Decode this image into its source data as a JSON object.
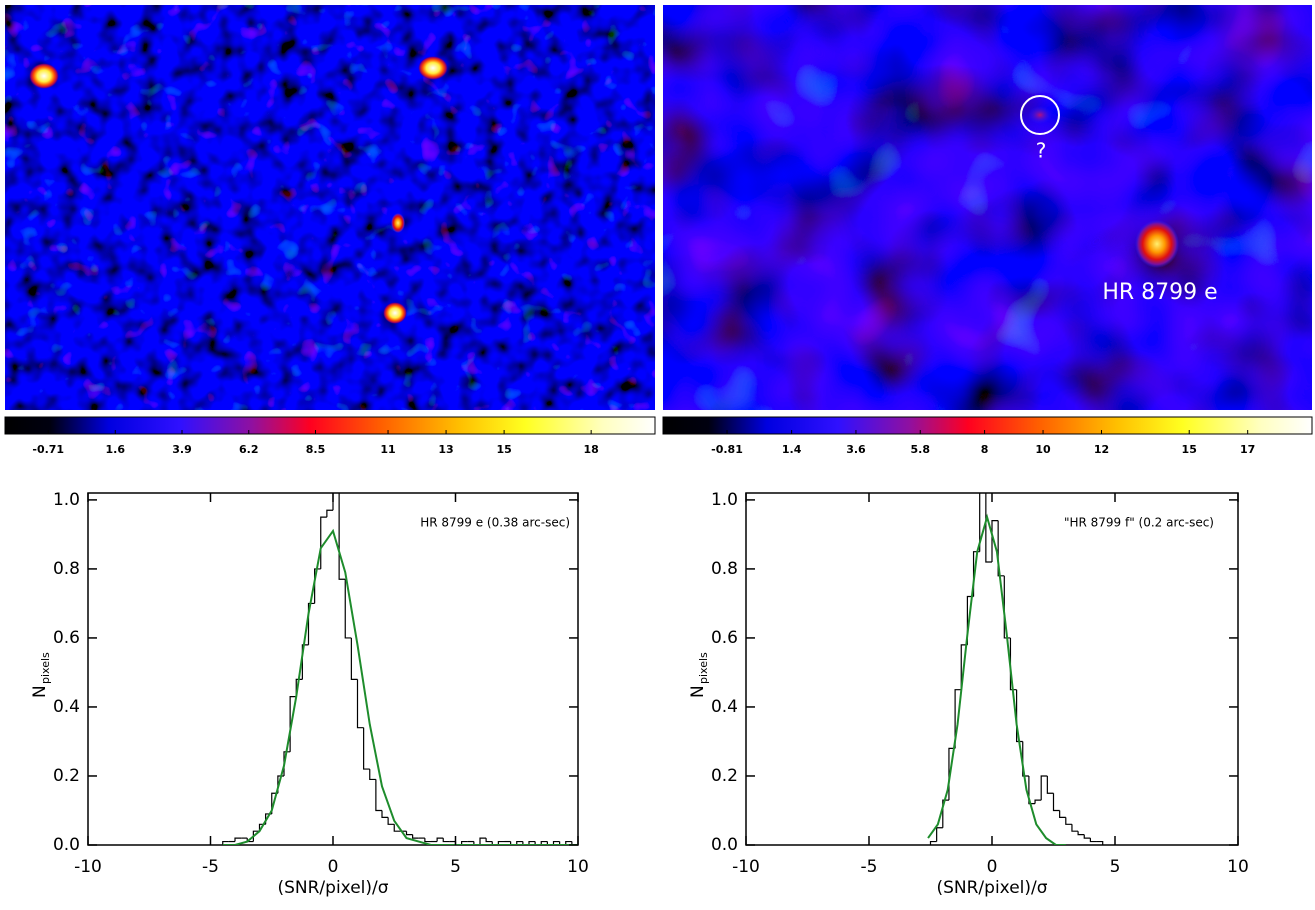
{
  "chart_data": [
    {
      "type": "image",
      "colorbar": {
        "lim": [
          -2.2,
          20.2
        ],
        "ticks": [
          -0.71,
          1.6,
          3.9,
          6.2,
          8.5,
          11,
          13,
          15,
          18
        ]
      },
      "annotations": []
    },
    {
      "type": "image",
      "colorbar": {
        "lim": [
          -3.0,
          19.2
        ],
        "ticks": [
          -0.81,
          1.4,
          3.6,
          5.8,
          8,
          10,
          12,
          15,
          17
        ]
      },
      "annotations": [
        "?",
        "HR 8799 e"
      ]
    },
    {
      "type": "histogram",
      "annotation": "HR 8799 e (0.38 arc-sec)",
      "xlabel": "(SNR/pixel)/σ",
      "ylabel": {
        "main": "N",
        "sub": "pixels"
      },
      "color": "#000000",
      "bins": [
        -4.5,
        -4.25,
        -4,
        -3.75,
        -3.5,
        -3.25,
        -3,
        -2.75,
        -2.5,
        -2.25,
        -2,
        -1.75,
        -1.5,
        -1.25,
        -1,
        -0.75,
        -0.5,
        -0.25,
        0,
        0.25,
        0.5,
        0.75,
        1,
        1.25,
        1.5,
        1.75,
        2,
        2.25,
        2.5,
        2.75,
        3,
        3.25,
        3.5,
        3.75,
        4,
        4.25,
        4.5,
        4.75,
        5,
        5.25,
        5.5,
        5.75,
        6,
        6.25,
        6.5,
        6.75,
        7,
        7.25,
        7.5,
        7.75,
        8,
        8.25,
        8.5,
        8.75,
        9,
        9.25,
        9.5,
        9.75,
        10
      ],
      "counts": [
        0.01,
        0.01,
        0.02,
        0.02,
        0.01,
        0.04,
        0.06,
        0.09,
        0.15,
        0.2,
        0.27,
        0.43,
        0.48,
        0.58,
        0.7,
        0.8,
        0.95,
        0.97,
        1.08,
        0.77,
        0.6,
        0.48,
        0.34,
        0.22,
        0.19,
        0.1,
        0.08,
        0.06,
        0.04,
        0.04,
        0.03,
        0.02,
        0.02,
        0.01,
        0.01,
        0.02,
        0.01,
        0.01,
        0,
        0.01,
        0.01,
        0,
        0.02,
        0.01,
        0,
        0.01,
        0.01,
        0,
        0.01,
        0,
        0.01,
        0,
        0.01,
        0,
        0.01,
        0,
        0.01,
        0
      ],
      "fit": {
        "color": "#1e8c2c",
        "x": [
          -4.5,
          -4,
          -3.5,
          -3,
          -2.5,
          -2,
          -1.5,
          -1,
          -0.5,
          0,
          0.5,
          1,
          1.5,
          2,
          2.5,
          3,
          3.5,
          4,
          4.5,
          5,
          5.5,
          6,
          6.5,
          7,
          7.5,
          8,
          8.5,
          9,
          9.5,
          10
        ],
        "values": [
          0,
          0,
          0.01,
          0.04,
          0.1,
          0.23,
          0.43,
          0.67,
          0.86,
          0.91,
          0.79,
          0.58,
          0.35,
          0.17,
          0.07,
          0.02,
          0.01,
          0,
          0,
          0,
          0,
          0,
          0,
          0,
          0,
          0,
          0,
          0,
          0,
          0
        ]
      },
      "xlim": [
        -10,
        10
      ],
      "ylim": [
        0,
        1.02
      ],
      "xticks": [
        -10,
        -5,
        0,
        5,
        10
      ],
      "yticks": [
        {
          "value": 0,
          "label": "0.0"
        },
        {
          "value": 0.2,
          "label": "0.2"
        },
        {
          "value": 0.4,
          "label": "0.4"
        },
        {
          "value": 0.6,
          "label": "0.6"
        },
        {
          "value": 0.8,
          "label": "0.8"
        },
        {
          "value": 1,
          "label": "1.0"
        }
      ]
    },
    {
      "type": "histogram",
      "annotation": "\"HR 8799 f\" (0.2 arc-sec)",
      "xlabel": "(SNR/pixel)/σ",
      "ylabel": {
        "main": "N",
        "sub": "pixels"
      },
      "color": "#000000",
      "bins": [
        -2.5,
        -2.25,
        -2,
        -1.75,
        -1.5,
        -1.25,
        -1,
        -0.75,
        -0.5,
        -0.25,
        0,
        0.25,
        0.5,
        0.75,
        1,
        1.25,
        1.5,
        1.75,
        2,
        2.25,
        2.5,
        2.75,
        3,
        3.25,
        3.5,
        3.75,
        4,
        4.25,
        4.5
      ],
      "counts": [
        0.01,
        0.05,
        0.13,
        0.28,
        0.45,
        0.58,
        0.72,
        0.85,
        1.05,
        0.82,
        0.94,
        0.78,
        0.6,
        0.45,
        0.3,
        0.2,
        0.12,
        0.13,
        0.2,
        0.15,
        0.1,
        0.08,
        0.06,
        0.04,
        0.03,
        0.02,
        0.01,
        0.01
      ],
      "fit": {
        "color": "#1e8c2c",
        "x": [
          -2.6,
          -2.2,
          -1.8,
          -1.4,
          -1,
          -0.6,
          -0.2,
          0.2,
          0.6,
          1,
          1.4,
          1.8,
          2.2,
          2.6,
          3
        ],
        "values": [
          0.02,
          0.06,
          0.16,
          0.35,
          0.61,
          0.85,
          0.95,
          0.85,
          0.61,
          0.35,
          0.16,
          0.06,
          0.02,
          0,
          0
        ]
      },
      "xlim": [
        -10,
        10
      ],
      "ylim": [
        0,
        1.02
      ],
      "xticks": [
        -10,
        -5,
        0,
        5,
        10
      ],
      "yticks": [
        {
          "value": 0,
          "label": "0.0"
        },
        {
          "value": 0.2,
          "label": "0.2"
        },
        {
          "value": 0.4,
          "label": "0.4"
        },
        {
          "value": 0.6,
          "label": "0.6"
        },
        {
          "value": 0.8,
          "label": "0.8"
        },
        {
          "value": 1,
          "label": "1.0"
        }
      ]
    }
  ]
}
